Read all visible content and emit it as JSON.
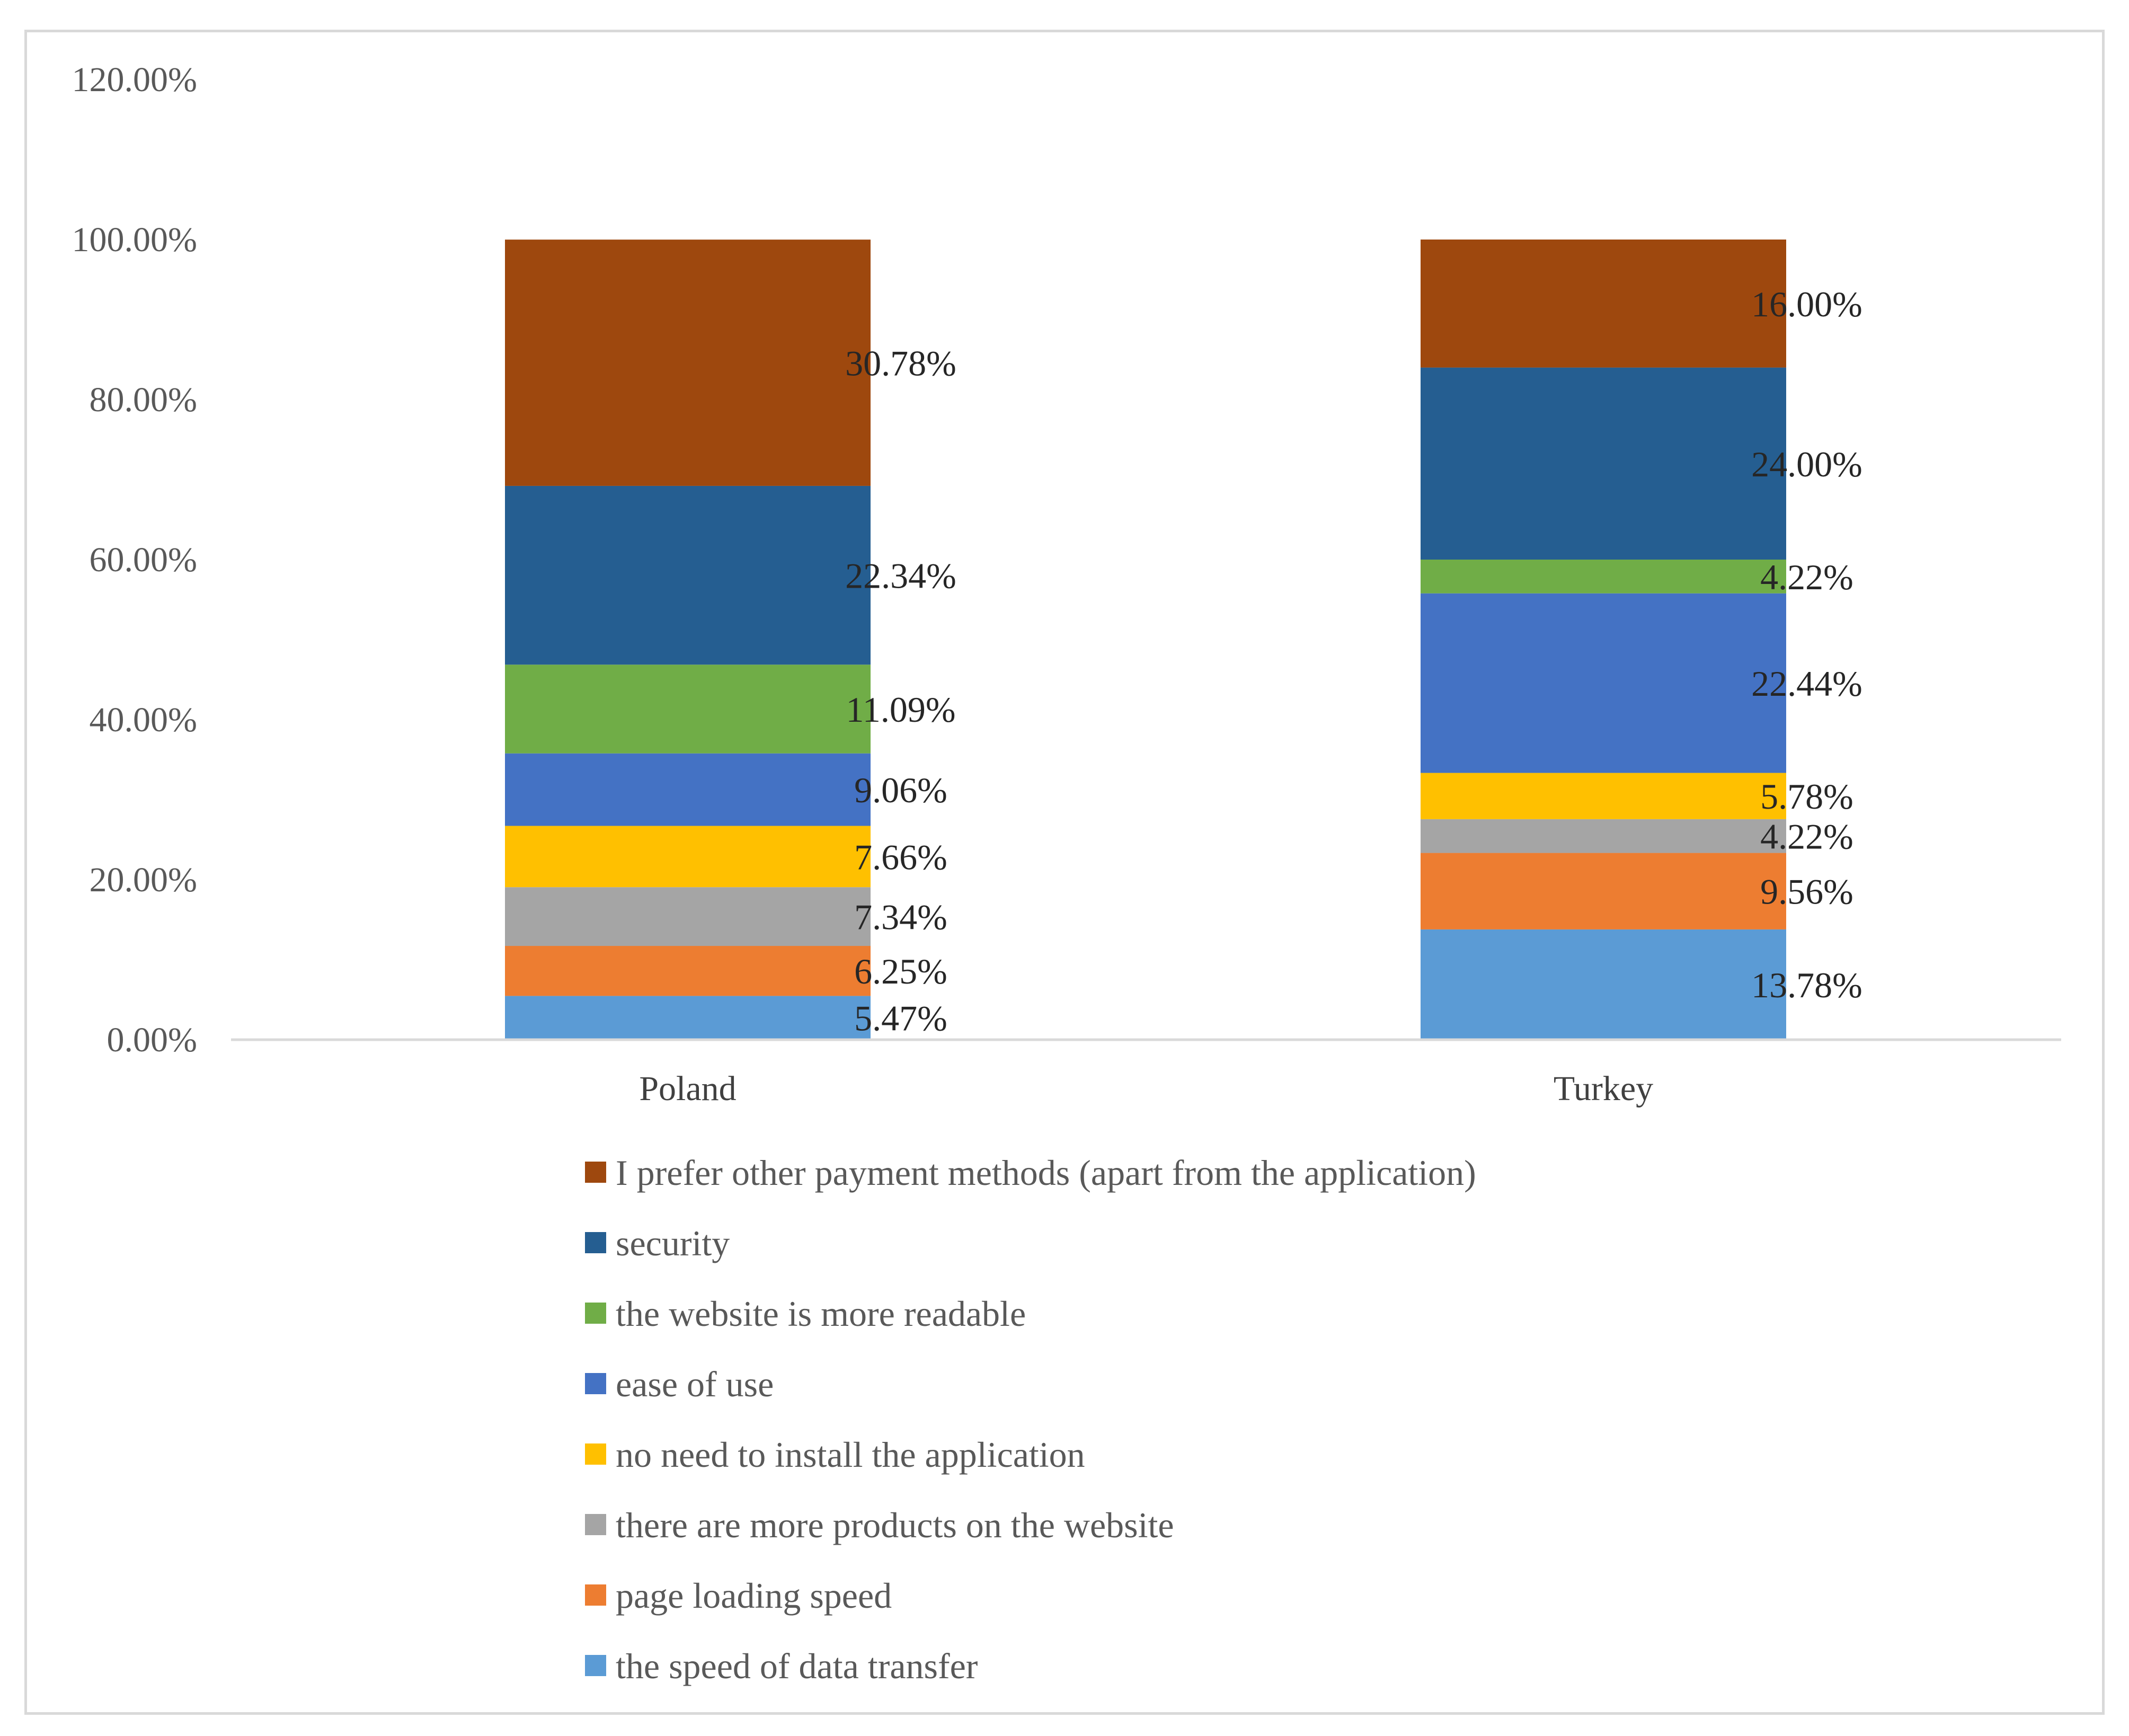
{
  "chart_data": {
    "type": "bar",
    "stacked": true,
    "title": "",
    "xlabel": "",
    "ylabel": "",
    "ylim": [
      0,
      120
    ],
    "y_ticks": [
      "0.00%",
      "20.00%",
      "40.00%",
      "60.00%",
      "80.00%",
      "100.00%",
      "120.00%"
    ],
    "grid": false,
    "legend_position": "bottom",
    "categories": [
      "Poland",
      "Turkey"
    ],
    "series": [
      {
        "name": "the speed of data transfer",
        "color": "#5b9bd5",
        "values": [
          5.47,
          13.78
        ],
        "labels": [
          "5.47%",
          "13.78%"
        ]
      },
      {
        "name": "page loading speed",
        "color": "#ed7d31",
        "values": [
          6.25,
          9.56
        ],
        "labels": [
          "6.25%",
          "9.56%"
        ]
      },
      {
        "name": "there are more products on the website",
        "color": "#a5a5a5",
        "values": [
          7.34,
          4.22
        ],
        "labels": [
          "7.34%",
          "4.22%"
        ]
      },
      {
        "name": "no need to install the application",
        "color": "#ffc000",
        "values": [
          7.66,
          5.78
        ],
        "labels": [
          "7.66%",
          "5.78%"
        ]
      },
      {
        "name": "ease of use",
        "color": "#4472c4",
        "values": [
          9.06,
          22.44
        ],
        "labels": [
          "9.06%",
          "22.44%"
        ]
      },
      {
        "name": "the website is more readable",
        "color": "#70ad47",
        "values": [
          11.09,
          4.22
        ],
        "labels": [
          "11.09%",
          "4.22%"
        ]
      },
      {
        "name": "security",
        "color": "#255e91",
        "values": [
          22.34,
          24.0
        ],
        "labels": [
          "22.34%",
          "24.00%"
        ]
      },
      {
        "name": "I prefer other payment methods (apart from the application)",
        "color": "#9e480e",
        "values": [
          30.78,
          16.0
        ],
        "labels": [
          "30.78%",
          "16.00%"
        ]
      }
    ]
  }
}
